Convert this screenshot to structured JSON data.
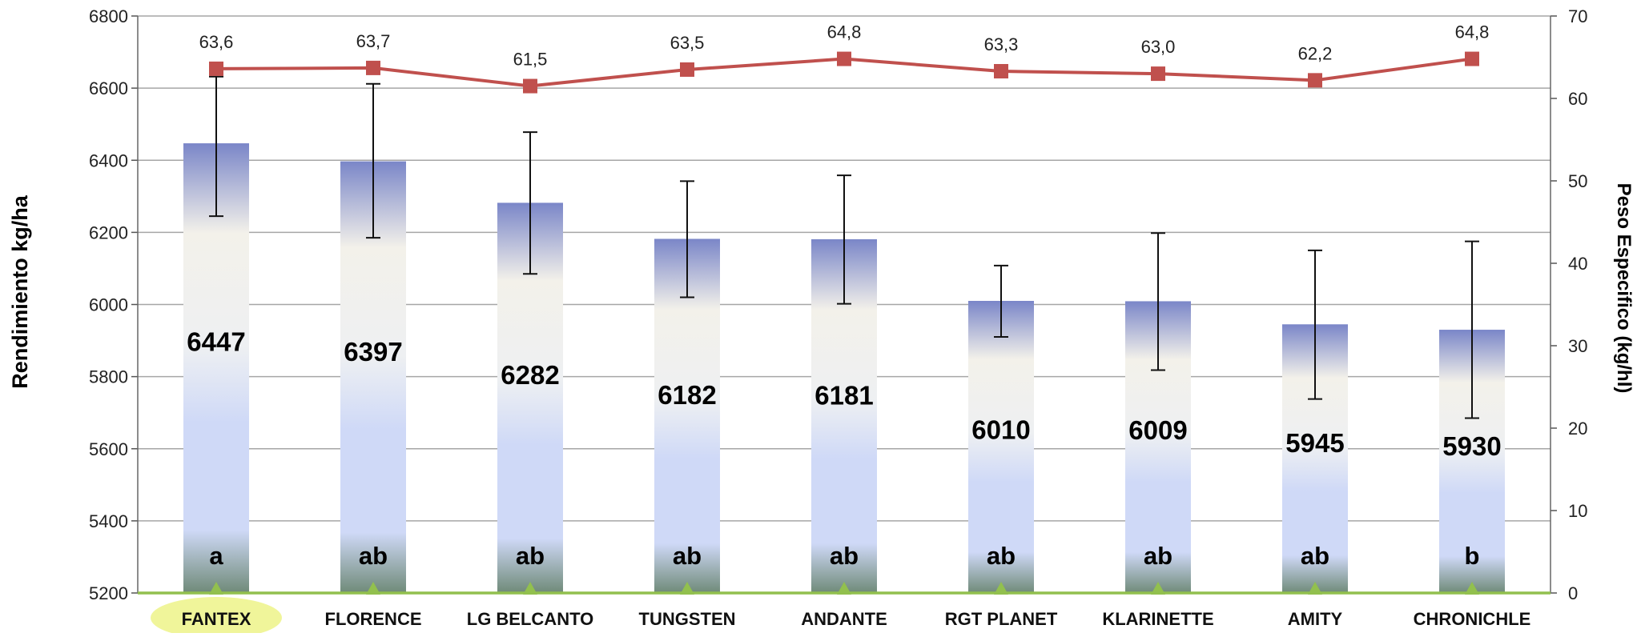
{
  "chart_data": {
    "type": "bar",
    "categories": [
      "FANTEX",
      "FLORENCE",
      "LG BELCANTO",
      "TUNGSTEN",
      "ANDANTE",
      "RGT PLANET",
      "KLARINETTE",
      "AMITY",
      "CHRONICHLE"
    ],
    "ylabel": "Rendimiento  kg/ha",
    "y2label": "Peso Especifico (kg/hl)",
    "ylim": [
      5200,
      6800
    ],
    "y2lim": [
      0,
      70
    ],
    "yticks": [
      "5200",
      "5400",
      "5600",
      "5800",
      "6000",
      "6200",
      "6400",
      "6600",
      "6800"
    ],
    "y2ticks": [
      "0",
      "10",
      "20",
      "30",
      "40",
      "50",
      "60",
      "70"
    ],
    "grid": true,
    "highlighted_category": "FANTEX",
    "series": [
      {
        "type": "bar",
        "axis": "left",
        "values": [
          6447,
          6397,
          6282,
          6182,
          6181,
          6010,
          6009,
          5945,
          5930
        ],
        "labels": [
          "6447",
          "6397",
          "6282",
          "6182",
          "6181",
          "6010",
          "6009",
          "5945",
          "5930"
        ],
        "error_low": [
          6245,
          6185,
          6085,
          6020,
          6002,
          5910,
          5818,
          5738,
          5685
        ],
        "error_high": [
          6632,
          6612,
          6478,
          6342,
          6358,
          6108,
          6198,
          6150,
          6175
        ],
        "significance": [
          "a",
          "ab",
          "ab",
          "ab",
          "ab",
          "ab",
          "ab",
          "ab",
          "b"
        ]
      },
      {
        "type": "line",
        "axis": "right",
        "values": [
          63.6,
          63.7,
          61.5,
          63.5,
          64.8,
          63.3,
          63.0,
          62.2,
          64.8
        ],
        "labels": [
          "63,6",
          "63,7",
          "61,5",
          "63,5",
          "64,8",
          "63,3",
          "63,0",
          "62,2",
          "64,8"
        ],
        "color": "#c0504d",
        "marker": "square"
      }
    ],
    "colors": {
      "bar_top": "#7a86c8",
      "bar_mid": "#f3f1ea",
      "bar_low": "#cfd9f7",
      "bar_base": "#6f8a78",
      "baseline": "#92c04e",
      "highlight": "#f0f59a",
      "grid": "#a6a6a6"
    }
  }
}
